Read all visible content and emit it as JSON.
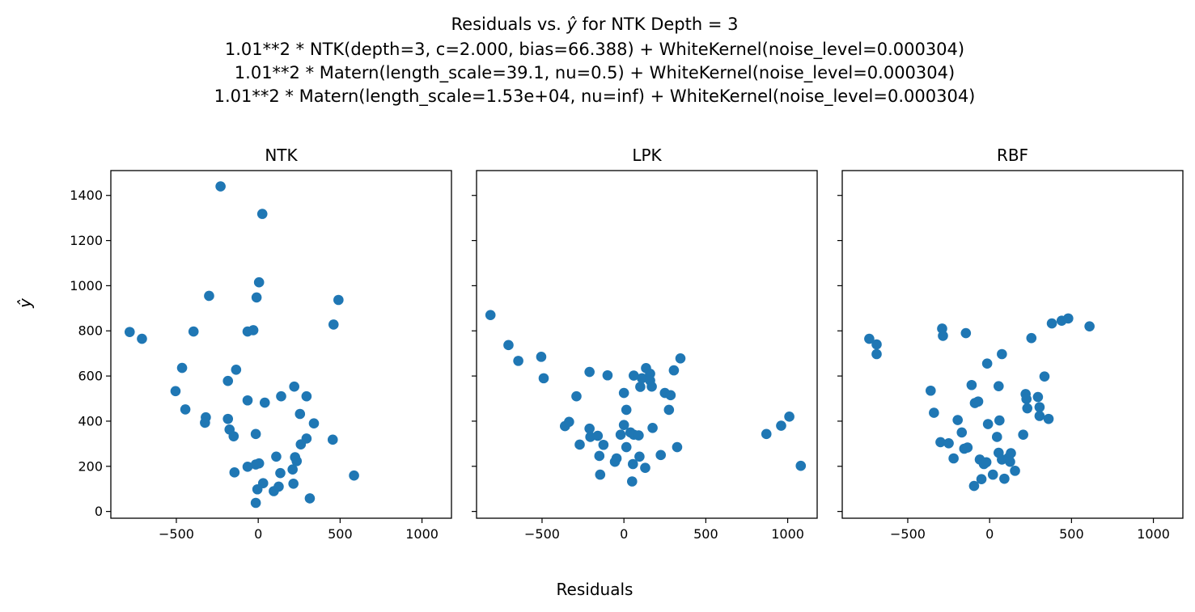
{
  "suptitle": {
    "line1_prefix": "Residuals vs. ",
    "line1_symbol": "ŷ",
    "line1_suffix": " for NTK Depth = 3",
    "line2": "1.01**2 * NTK(depth=3, c=2.000, bias=66.388) + WhiteKernel(noise_level=0.000304)",
    "line3": "1.01**2 * Matern(length_scale=39.1, nu=0.5) + WhiteKernel(noise_level=0.000304)",
    "line4": "1.01**2 * Matern(length_scale=1.53e+04, nu=inf) + WhiteKernel(noise_level=0.000304)"
  },
  "xlabel": "Residuals",
  "ylabel": "ŷ",
  "colors": {
    "points": "#1f77b4"
  },
  "chart_data": [
    {
      "type": "scatter",
      "title": "NTK",
      "xlim": [
        -900,
        1180
      ],
      "ylim": [
        -30,
        1510
      ],
      "xticks": [
        -500,
        0,
        500,
        1000
      ],
      "xtick_labels": [
        "−500",
        "0",
        "500",
        "1000"
      ],
      "yticks": [
        0,
        200,
        400,
        600,
        800,
        1000,
        1200,
        1400
      ],
      "ytick_labels": [
        "0",
        "200",
        "400",
        "600",
        "800",
        "1000",
        "1200",
        "1400"
      ],
      "points": [
        [
          -230,
          1440
        ],
        [
          25,
          1318
        ],
        [
          5,
          1015
        ],
        [
          -300,
          955
        ],
        [
          -10,
          948
        ],
        [
          490,
          937
        ],
        [
          -785,
          795
        ],
        [
          -710,
          765
        ],
        [
          -395,
          797
        ],
        [
          -65,
          797
        ],
        [
          -30,
          803
        ],
        [
          460,
          828
        ],
        [
          -465,
          636
        ],
        [
          -135,
          628
        ],
        [
          -185,
          578
        ],
        [
          -505,
          533
        ],
        [
          -445,
          452
        ],
        [
          -65,
          492
        ],
        [
          40,
          482
        ],
        [
          140,
          510
        ],
        [
          220,
          553
        ],
        [
          295,
          510
        ],
        [
          -320,
          417
        ],
        [
          -325,
          393
        ],
        [
          -185,
          410
        ],
        [
          -175,
          363
        ],
        [
          -150,
          333
        ],
        [
          -15,
          343
        ],
        [
          255,
          432
        ],
        [
          340,
          390
        ],
        [
          455,
          318
        ],
        [
          295,
          323
        ],
        [
          260,
          297
        ],
        [
          225,
          240
        ],
        [
          235,
          223
        ],
        [
          -145,
          173
        ],
        [
          -65,
          198
        ],
        [
          -15,
          208
        ],
        [
          5,
          213
        ],
        [
          110,
          243
        ],
        [
          135,
          170
        ],
        [
          210,
          186
        ],
        [
          585,
          159
        ],
        [
          30,
          125
        ],
        [
          -5,
          98
        ],
        [
          95,
          90
        ],
        [
          125,
          110
        ],
        [
          215,
          123
        ],
        [
          315,
          58
        ],
        [
          -15,
          38
        ]
      ]
    },
    {
      "type": "scatter",
      "title": "LPK",
      "xlim": [
        -900,
        1180
      ],
      "ylim": [
        -30,
        1510
      ],
      "xticks": [
        -500,
        0,
        500,
        1000
      ],
      "xtick_labels": [
        "−500",
        "0",
        "500",
        "1000"
      ],
      "points": [
        [
          -815,
          870
        ],
        [
          -705,
          737
        ],
        [
          -645,
          667
        ],
        [
          -505,
          685
        ],
        [
          -490,
          590
        ],
        [
          -290,
          510
        ],
        [
          -210,
          618
        ],
        [
          -100,
          603
        ],
        [
          0,
          525
        ],
        [
          60,
          602
        ],
        [
          110,
          590
        ],
        [
          135,
          635
        ],
        [
          160,
          610
        ],
        [
          160,
          580
        ],
        [
          170,
          553
        ],
        [
          100,
          552
        ],
        [
          250,
          525
        ],
        [
          285,
          515
        ],
        [
          305,
          625
        ],
        [
          345,
          678
        ],
        [
          275,
          450
        ],
        [
          15,
          450
        ],
        [
          -360,
          378
        ],
        [
          -335,
          397
        ],
        [
          -210,
          367
        ],
        [
          -205,
          330
        ],
        [
          -160,
          335
        ],
        [
          -125,
          295
        ],
        [
          -270,
          296
        ],
        [
          0,
          383
        ],
        [
          -20,
          340
        ],
        [
          40,
          350
        ],
        [
          60,
          340
        ],
        [
          90,
          337
        ],
        [
          175,
          370
        ],
        [
          15,
          285
        ],
        [
          -150,
          246
        ],
        [
          -45,
          235
        ],
        [
          -55,
          220
        ],
        [
          95,
          243
        ],
        [
          225,
          250
        ],
        [
          325,
          285
        ],
        [
          -145,
          163
        ],
        [
          55,
          210
        ],
        [
          130,
          193
        ],
        [
          50,
          133
        ],
        [
          870,
          343
        ],
        [
          960,
          380
        ],
        [
          1010,
          420
        ],
        [
          1080,
          202
        ]
      ]
    },
    {
      "type": "scatter",
      "title": "RBF",
      "xlim": [
        -900,
        1180
      ],
      "ylim": [
        -30,
        1510
      ],
      "xticks": [
        -500,
        0,
        500,
        1000
      ],
      "xtick_labels": [
        "−500",
        "0",
        "500",
        "1000"
      ],
      "points": [
        [
          -735,
          765
        ],
        [
          -690,
          740
        ],
        [
          -690,
          697
        ],
        [
          -290,
          810
        ],
        [
          -285,
          778
        ],
        [
          -145,
          790
        ],
        [
          75,
          697
        ],
        [
          -15,
          655
        ],
        [
          255,
          768
        ],
        [
          380,
          833
        ],
        [
          440,
          845
        ],
        [
          480,
          855
        ],
        [
          610,
          820
        ],
        [
          -360,
          535
        ],
        [
          -340,
          437
        ],
        [
          -110,
          560
        ],
        [
          -90,
          480
        ],
        [
          -70,
          487
        ],
        [
          55,
          555
        ],
        [
          220,
          520
        ],
        [
          225,
          498
        ],
        [
          295,
          507
        ],
        [
          335,
          598
        ],
        [
          230,
          457
        ],
        [
          305,
          462
        ],
        [
          305,
          423
        ],
        [
          360,
          410
        ],
        [
          -195,
          405
        ],
        [
          -10,
          387
        ],
        [
          60,
          403
        ],
        [
          205,
          340
        ],
        [
          -300,
          307
        ],
        [
          -250,
          302
        ],
        [
          -170,
          350
        ],
        [
          -155,
          278
        ],
        [
          -135,
          283
        ],
        [
          45,
          330
        ],
        [
          -220,
          235
        ],
        [
          -60,
          230
        ],
        [
          -35,
          210
        ],
        [
          -20,
          218
        ],
        [
          55,
          260
        ],
        [
          75,
          230
        ],
        [
          115,
          238
        ],
        [
          130,
          258
        ],
        [
          125,
          220
        ],
        [
          -50,
          143
        ],
        [
          20,
          163
        ],
        [
          90,
          145
        ],
        [
          155,
          180
        ],
        [
          -95,
          113
        ]
      ]
    }
  ]
}
